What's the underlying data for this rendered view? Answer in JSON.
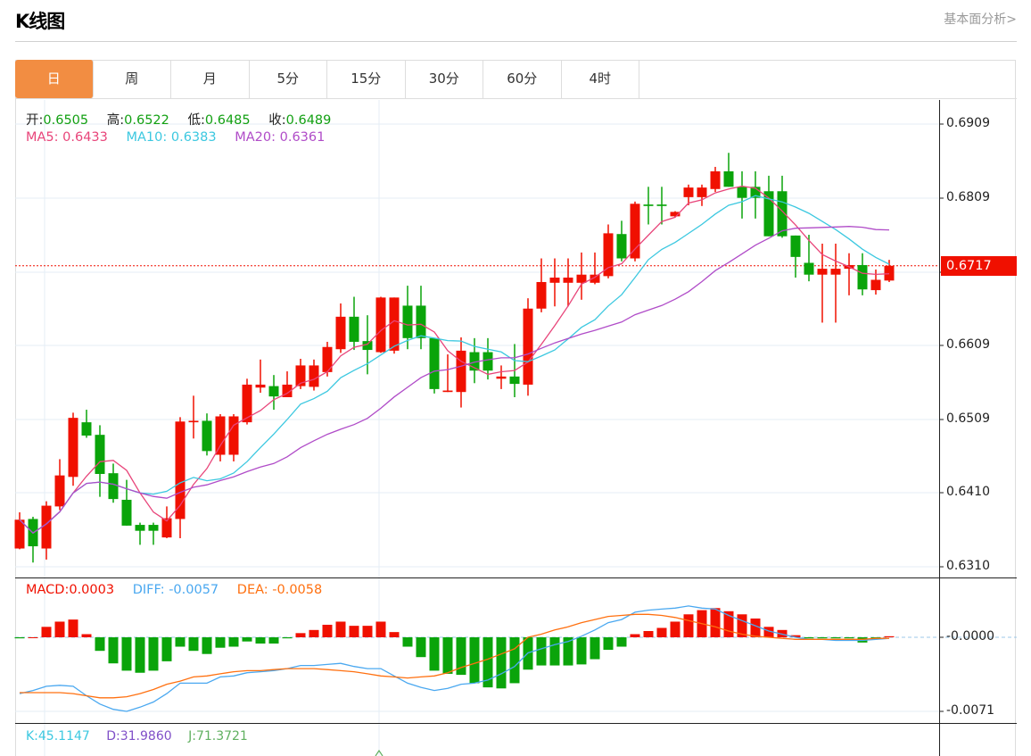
{
  "header": {
    "title": "K线图",
    "fundamental_link": "基本面分析>"
  },
  "tabs": [
    {
      "label": "日",
      "active": true
    },
    {
      "label": "周"
    },
    {
      "label": "月"
    },
    {
      "label": "5分"
    },
    {
      "label": "15分"
    },
    {
      "label": "30分"
    },
    {
      "label": "60分"
    },
    {
      "label": "4时"
    }
  ],
  "info": {
    "open_label": "开:",
    "open": "0.6505",
    "high_label": "高:",
    "high": "0.6522",
    "low_label": "低:",
    "low": "0.6485",
    "close_label": "收:",
    "close": "0.6489",
    "ma5": "MA5:  0.6433",
    "ma10": "MA10:  0.6383",
    "ma20": "MA20:  0.6361",
    "macd": "MACD:0.0003",
    "diff": "DIFF: -0.0057",
    "dea": "DEA: -0.0058",
    "k": "K:45.1147",
    "d": "D:31.9860",
    "j": "J:71.3721"
  },
  "price_axis": [
    "0.6909",
    "0.6809",
    "0.6609",
    "0.6509",
    "0.6410",
    "0.6310"
  ],
  "last_price": "0.6717",
  "macd_axis": [
    "-0.0000",
    "-0.0071"
  ],
  "colors": {
    "up": "#f01000",
    "down": "#0aa40a",
    "ma5": "#e8457a",
    "ma10": "#3cc8e0",
    "ma20": "#b04cc8",
    "diff": "#4aa8f0",
    "dea": "#ff7010",
    "accent": "#f28d42"
  },
  "chart_data": {
    "type": "candlestick",
    "price_range": [
      0.63,
      0.692
    ],
    "macd_range": [
      -0.008,
      0.0078
    ],
    "candles": [
      [
        0.6334,
        0.6383,
        0.6333,
        0.6373
      ],
      [
        0.6374,
        0.6377,
        0.6315,
        0.6337
      ],
      [
        0.6334,
        0.6398,
        0.6319,
        0.6392
      ],
      [
        0.6391,
        0.6455,
        0.6386,
        0.6433
      ],
      [
        0.6431,
        0.6518,
        0.6419,
        0.6511
      ],
      [
        0.6505,
        0.6522,
        0.6484,
        0.6487
      ],
      [
        0.6488,
        0.6501,
        0.6404,
        0.6435
      ],
      [
        0.6436,
        0.6449,
        0.6396,
        0.6401
      ],
      [
        0.64,
        0.6427,
        0.6365,
        0.6365
      ],
      [
        0.6366,
        0.6369,
        0.6339,
        0.6358
      ],
      [
        0.6366,
        0.6369,
        0.6339,
        0.6358
      ],
      [
        0.6349,
        0.6391,
        0.6348,
        0.6375
      ],
      [
        0.6374,
        0.6512,
        0.6348,
        0.6506
      ],
      [
        0.6505,
        0.6541,
        0.6483,
        0.6507
      ],
      [
        0.6507,
        0.6517,
        0.646,
        0.6466
      ],
      [
        0.6461,
        0.6516,
        0.6452,
        0.6513
      ],
      [
        0.6461,
        0.6516,
        0.6452,
        0.6513
      ],
      [
        0.6505,
        0.6564,
        0.6502,
        0.6556
      ],
      [
        0.6552,
        0.659,
        0.6545,
        0.6556
      ],
      [
        0.6554,
        0.6569,
        0.6522,
        0.654
      ],
      [
        0.6539,
        0.6574,
        0.6539,
        0.6556
      ],
      [
        0.6554,
        0.6591,
        0.655,
        0.6582
      ],
      [
        0.6553,
        0.659,
        0.6548,
        0.6582
      ],
      [
        0.6573,
        0.6614,
        0.6567,
        0.6607
      ],
      [
        0.6604,
        0.6666,
        0.6599,
        0.6648
      ],
      [
        0.6648,
        0.6675,
        0.6603,
        0.6614
      ],
      [
        0.6615,
        0.665,
        0.657,
        0.6603
      ],
      [
        0.66,
        0.6675,
        0.6599,
        0.6674
      ],
      [
        0.6602,
        0.6674,
        0.6598,
        0.6674
      ],
      [
        0.6663,
        0.669,
        0.6604,
        0.6619
      ],
      [
        0.6663,
        0.669,
        0.6604,
        0.6619
      ],
      [
        0.6619,
        0.6619,
        0.6544,
        0.655
      ],
      [
        0.6546,
        0.6597,
        0.6546,
        0.6548
      ],
      [
        0.6546,
        0.662,
        0.6525,
        0.6602
      ],
      [
        0.66,
        0.6619,
        0.6558,
        0.6575
      ],
      [
        0.66,
        0.6619,
        0.6563,
        0.6575
      ],
      [
        0.6564,
        0.6582,
        0.655,
        0.6567
      ],
      [
        0.6567,
        0.6611,
        0.6539,
        0.6557
      ],
      [
        0.6556,
        0.6673,
        0.6541,
        0.6659
      ],
      [
        0.6659,
        0.6727,
        0.6654,
        0.6695
      ],
      [
        0.6694,
        0.6727,
        0.6662,
        0.6701
      ],
      [
        0.6694,
        0.6727,
        0.6662,
        0.6701
      ],
      [
        0.6694,
        0.6735,
        0.6671,
        0.6705
      ],
      [
        0.6694,
        0.6735,
        0.6692,
        0.6705
      ],
      [
        0.6703,
        0.6773,
        0.67,
        0.6761
      ],
      [
        0.676,
        0.6778,
        0.6723,
        0.6727
      ],
      [
        0.6727,
        0.6804,
        0.6723,
        0.6801
      ],
      [
        0.68,
        0.6824,
        0.6773,
        0.6798
      ],
      [
        0.68,
        0.6824,
        0.6773,
        0.6798
      ],
      [
        0.6784,
        0.6791,
        0.6783,
        0.679
      ],
      [
        0.681,
        0.6827,
        0.6799,
        0.6823
      ],
      [
        0.681,
        0.6827,
        0.6798,
        0.6823
      ],
      [
        0.6821,
        0.6851,
        0.6817,
        0.6845
      ],
      [
        0.6845,
        0.687,
        0.6824,
        0.6824
      ],
      [
        0.6824,
        0.6845,
        0.6781,
        0.6809
      ],
      [
        0.6824,
        0.6845,
        0.6781,
        0.6809
      ],
      [
        0.6818,
        0.6839,
        0.6757,
        0.6757
      ],
      [
        0.6818,
        0.6839,
        0.6755,
        0.6757
      ],
      [
        0.6758,
        0.6758,
        0.6701,
        0.6729
      ],
      [
        0.6721,
        0.6759,
        0.6696,
        0.6705
      ],
      [
        0.6705,
        0.6747,
        0.664,
        0.6713
      ],
      [
        0.6705,
        0.6747,
        0.664,
        0.6713
      ],
      [
        0.6713,
        0.6734,
        0.6677,
        0.6718
      ],
      [
        0.6718,
        0.6734,
        0.6677,
        0.6685
      ],
      [
        0.6684,
        0.6712,
        0.6678,
        0.6698
      ],
      [
        0.6697,
        0.6725,
        0.6695,
        0.6717
      ]
    ],
    "macd_hist": [
      -0.0001,
      0,
      0.001,
      0.0015,
      0.0017,
      0.0003,
      -0.0013,
      -0.0025,
      -0.0032,
      -0.0034,
      -0.0032,
      -0.0023,
      -0.0009,
      -0.0013,
      -0.0016,
      -0.001,
      -0.0009,
      -0.0004,
      -0.0006,
      -0.0006,
      -0.0001,
      0.0004,
      0.0007,
      0.0012,
      0.0015,
      0.0011,
      0.0011,
      0.0015,
      0.0005,
      -0.0009,
      -0.0019,
      -0.0032,
      -0.0035,
      -0.0036,
      -0.0044,
      -0.0048,
      -0.0049,
      -0.0044,
      -0.0031,
      -0.0027,
      -0.0027,
      -0.0027,
      -0.0026,
      -0.0021,
      -0.0012,
      -0.0009,
      0.0003,
      0.0006,
      0.0009,
      0.0015,
      0.0022,
      0.0026,
      0.0028,
      0.0025,
      0.0022,
      0.0018,
      0.001,
      0.0007,
      0.0002,
      -0.0001,
      -0.0001,
      -0.0001,
      -0.0001,
      -0.0005,
      -0.0001,
      0.0001
    ],
    "diff": [
      -0.0054,
      -0.0051,
      -0.0047,
      -0.0046,
      -0.0047,
      -0.0056,
      -0.0064,
      -0.0069,
      -0.0071,
      -0.0067,
      -0.0062,
      -0.0054,
      -0.0044,
      -0.0044,
      -0.0044,
      -0.0038,
      -0.0037,
      -0.0034,
      -0.0033,
      -0.0032,
      -0.003,
      -0.0027,
      -0.0027,
      -0.0026,
      -0.0025,
      -0.0028,
      -0.003,
      -0.003,
      -0.0037,
      -0.0044,
      -0.0048,
      -0.0051,
      -0.0049,
      -0.0045,
      -0.0044,
      -0.0041,
      -0.0035,
      -0.0028,
      -0.0015,
      -0.0011,
      -0.0007,
      -0.0004,
      0.0001,
      0.0007,
      0.0014,
      0.0017,
      0.0024,
      0.0026,
      0.0027,
      0.0028,
      0.003,
      0.0028,
      0.0027,
      0.0021,
      0.0016,
      0.0011,
      0.0006,
      0.0003,
      0,
      -0.0002,
      -0.0002,
      -0.0003,
      -0.0003,
      -0.0003,
      -0.0002,
      -0.0001
    ],
    "dea": [
      -0.0053,
      -0.0053,
      -0.0053,
      -0.0053,
      -0.0054,
      -0.0056,
      -0.0058,
      -0.0058,
      -0.0057,
      -0.0054,
      -0.005,
      -0.0045,
      -0.0042,
      -0.0038,
      -0.0037,
      -0.0035,
      -0.0033,
      -0.0032,
      -0.0032,
      -0.0031,
      -0.003,
      -0.003,
      -0.003,
      -0.0031,
      -0.0032,
      -0.0033,
      -0.0035,
      -0.0037,
      -0.0038,
      -0.0039,
      -0.0038,
      -0.0037,
      -0.0034,
      -0.0029,
      -0.0025,
      -0.0021,
      -0.0016,
      -0.0011,
      0,
      0.0003,
      0.0007,
      0.001,
      0.0014,
      0.0017,
      0.002,
      0.0021,
      0.0022,
      0.0022,
      0.0021,
      0.0019,
      0.0016,
      0.0013,
      0.001,
      0.0006,
      0.0003,
      0.0001,
      0,
      -0.0001,
      -0.0002,
      -0.0002,
      -0.0002,
      -0.0002,
      -0.0002,
      -0.0002,
      -0.0001,
      -0.0001
    ]
  }
}
